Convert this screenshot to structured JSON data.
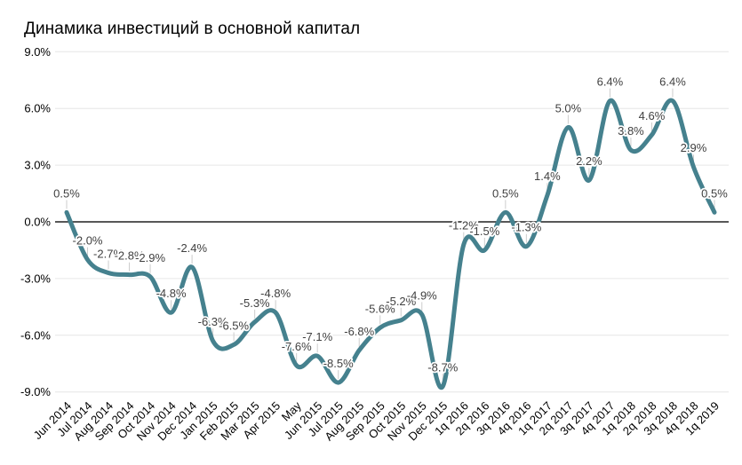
{
  "chart_data": {
    "type": "line",
    "title": "Динамика инвестиций в основной капитал",
    "smooth": true,
    "grid": true,
    "legend_position": "none",
    "series_color": "#45818e",
    "ylim": [
      -9,
      9
    ],
    "y_ticks": [
      {
        "value": 9,
        "label": "9.0%"
      },
      {
        "value": 6,
        "label": "6.0%"
      },
      {
        "value": 3,
        "label": "3.0%"
      },
      {
        "value": 0,
        "label": "0.0%"
      },
      {
        "value": -3,
        "label": "-3.0%"
      },
      {
        "value": -6,
        "label": "-6.0%"
      },
      {
        "value": -9,
        "label": "-9.0%"
      }
    ],
    "categories": [
      "Jun 2014",
      "Jul 2014",
      "Aug 2014",
      "Sep 2014",
      "Oct 2014",
      "Nov 2014",
      "Dec 2014",
      "Jan 2015",
      "Feb 2015",
      "Mar 2015",
      "Apr 2015",
      "May",
      "Jun 2015",
      "Jul 2015",
      "Aug 2015",
      "Sep 2015",
      "Oct 2015",
      "Nov 2015",
      "Dec 2015",
      "1q 2016",
      "2q 2016",
      "3q 2016",
      "4q 2016",
      "1q 2017",
      "2q 2017",
      "3q 2017",
      "4q 2017",
      "1q 2018",
      "2q 2018",
      "3q 2018",
      "4q 2018",
      "1q 2019"
    ],
    "values": [
      0.5,
      -2.0,
      -2.7,
      -2.8,
      -2.9,
      -4.8,
      -2.4,
      -6.3,
      -6.5,
      -5.3,
      -4.8,
      -7.6,
      -7.1,
      -8.5,
      -6.8,
      -5.6,
      -5.2,
      -4.9,
      -8.7,
      -1.2,
      -1.5,
      0.5,
      -1.3,
      1.4,
      5.0,
      2.2,
      6.4,
      3.8,
      4.6,
      6.4,
      2.9,
      0.5
    ],
    "point_labels": [
      "0.5%",
      "-2.0%",
      "-2.7%",
      "-2.8%",
      "-2.9%",
      "-4.8%",
      "-2.4%",
      "-6.3%",
      "-6.5%",
      "-5.3%",
      "-4.8%",
      "-7.6%",
      "-7.1%",
      "-8.5%",
      "-6.8%",
      "-5.6%",
      "-5.2%",
      "-4.9%",
      "-8.7%",
      "-1.2%",
      "-1.5%",
      "0.5%",
      "-1.3%",
      "1.4%",
      "5.0%",
      "2.2%",
      "6.4%",
      "3.8%",
      "4.6%",
      "6.4%",
      "2.9%",
      "0.5%"
    ]
  }
}
